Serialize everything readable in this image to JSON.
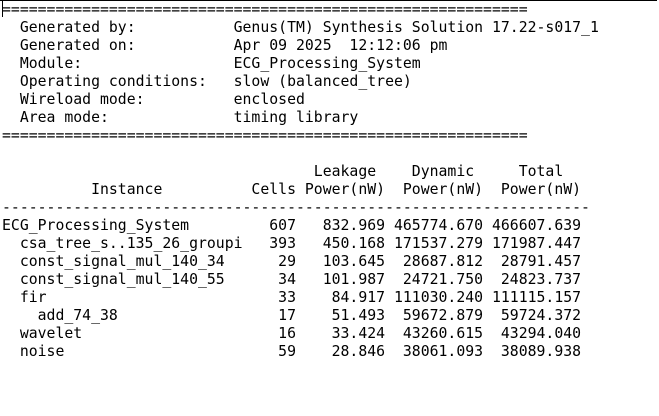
{
  "lines": [
    "===========================================================",
    "  Generated by:           Genus(TM) Synthesis Solution 17.22-s017_1",
    "  Generated on:           Apr 09 2025  12:12:06 pm",
    "  Module:                 ECG_Processing_System",
    "  Operating conditions:   slow (balanced_tree)",
    "  Wireload mode:          enclosed",
    "  Area mode:              timing library",
    "===========================================================",
    "",
    "                                   Leakage    Dynamic     Total",
    "          Instance          Cells Power(nW)  Power(nW)  Power(nW)",
    "------------------------------------------------------------------",
    "ECG_Processing_System         607   832.969 465774.670 466607.639",
    "  csa_tree_s..135_26_groupi   393   450.168 171537.279 171987.447",
    "  const_signal_mul_140_34      29   103.645  28687.812  28791.457",
    "  const_signal_mul_140_55      34   101.987  24721.750  24823.737",
    "  fir                          33    84.917 111030.240 111115.157",
    "    add_74_38                  17    51.493  59672.879  59724.372",
    "  wavelet                      16    33.424  43260.615  43294.040",
    "  noise                        59    28.846  38061.093  38089.938"
  ]
}
